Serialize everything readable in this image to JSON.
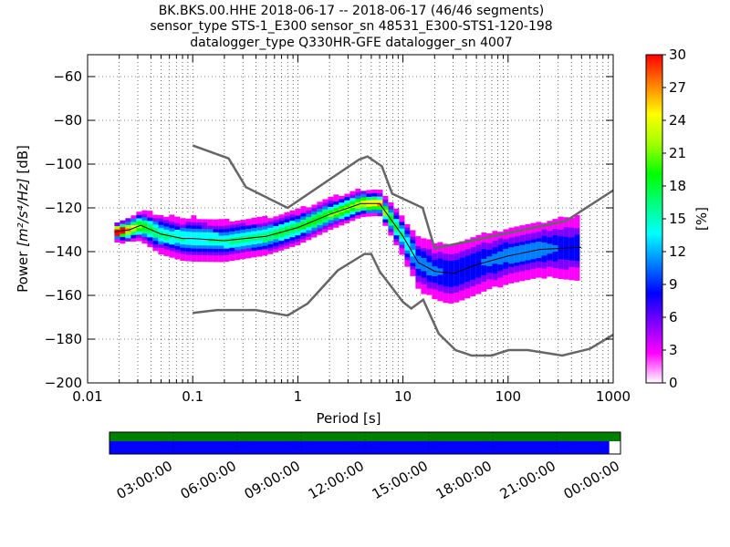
{
  "title_lines": [
    "BK.BKS.00.HHE   2018-06-17 -- 2018-06-17  (46/46 segments)",
    "sensor_type STS-1_E300 sensor_sn 48531_E300-STS1-120-198",
    "datalogger_type Q330HR-GFE datalogger_sn 4007"
  ],
  "chart_data": {
    "type": "heatmap",
    "xlabel": "Period [s]",
    "ylabel_prefix": "Power ",
    "ylabel_math": "[m²/s⁴/Hz]",
    "ylabel_suffix": " [dB]",
    "x_scale": "log",
    "xlim": [
      0.01,
      1000
    ],
    "ylim": [
      -200,
      -50
    ],
    "x_ticks": [
      {
        "value": 0.01,
        "label": "0.01"
      },
      {
        "value": 0.1,
        "label": "0.1"
      },
      {
        "value": 1,
        "label": "1"
      },
      {
        "value": 10,
        "label": "10"
      },
      {
        "value": 100,
        "label": "100"
      },
      {
        "value": 1000,
        "label": "1000"
      }
    ],
    "y_ticks": [
      -60,
      -80,
      -100,
      -120,
      -140,
      -160,
      -180,
      -200
    ],
    "grid": "dotted",
    "colorbar": {
      "label": "[%]",
      "range": [
        0,
        30
      ],
      "ticks": [
        0,
        3,
        6,
        9,
        12,
        15,
        18,
        21,
        24,
        27,
        30
      ],
      "colors": [
        "#ffffff",
        "#ff00ff",
        "#8000ff",
        "#0000ff",
        "#0080ff",
        "#00ffff",
        "#00ff80",
        "#00ff00",
        "#a0ff00",
        "#ffff00",
        "#ff8000",
        "#ff0000"
      ]
    },
    "noise_model_color": "#666666",
    "new_high_noise_model": [
      [
        0.1,
        -91.5
      ],
      [
        0.22,
        -97.4
      ],
      [
        0.32,
        -110.5
      ],
      [
        0.8,
        -120
      ],
      [
        3.8,
        -98
      ],
      [
        4.6,
        -96.5
      ],
      [
        6.3,
        -101
      ],
      [
        7.9,
        -113.5
      ],
      [
        15.4,
        -120
      ],
      [
        20,
        -138.5
      ],
      [
        354.8,
        -126
      ],
      [
        1000,
        -112
      ]
    ],
    "new_low_noise_model": [
      [
        0.1,
        -168
      ],
      [
        0.17,
        -166.7
      ],
      [
        0.4,
        -166.7
      ],
      [
        0.8,
        -169.2
      ],
      [
        1.24,
        -163.7
      ],
      [
        2.4,
        -148.6
      ],
      [
        4.3,
        -141.1
      ],
      [
        5.0,
        -141.1
      ],
      [
        6.0,
        -149
      ],
      [
        10,
        -163
      ],
      [
        12,
        -166
      ],
      [
        15.6,
        -162
      ],
      [
        21.9,
        -177.5
      ],
      [
        31.6,
        -185
      ],
      [
        45,
        -187.5
      ],
      [
        70,
        -187.5
      ],
      [
        101,
        -185
      ],
      [
        154,
        -185
      ],
      [
        328,
        -187.5
      ],
      [
        600,
        -184.4
      ],
      [
        1000,
        -178
      ]
    ],
    "ppsd_estimate": [
      [
        0.018,
        -131
      ],
      [
        0.025,
        -130
      ],
      [
        0.032,
        -128
      ],
      [
        0.05,
        -132
      ],
      [
        0.08,
        -134
      ],
      [
        0.1,
        -134
      ],
      [
        0.2,
        -135
      ],
      [
        0.5,
        -133
      ],
      [
        1,
        -129
      ],
      [
        2,
        -123
      ],
      [
        4,
        -118
      ],
      [
        6,
        -118
      ],
      [
        10,
        -133
      ],
      [
        14,
        -145
      ],
      [
        20,
        -149
      ],
      [
        30,
        -150
      ],
      [
        50,
        -146
      ],
      [
        100,
        -142
      ],
      [
        200,
        -139
      ],
      [
        500,
        -138
      ]
    ],
    "data_band": [
      [
        0.018,
        1.5
      ],
      [
        0.03,
        3
      ],
      [
        0.05,
        4
      ],
      [
        0.1,
        4.5
      ],
      [
        0.3,
        4
      ],
      [
        1,
        3.5
      ],
      [
        3,
        3
      ],
      [
        6,
        2.5
      ],
      [
        10,
        4
      ],
      [
        15,
        6
      ],
      [
        25,
        7
      ],
      [
        50,
        7
      ],
      [
        100,
        6
      ],
      [
        200,
        6
      ],
      [
        300,
        7
      ],
      [
        650,
        8
      ]
    ]
  },
  "timeline": {
    "tick_labels": [
      "03:00:00",
      "06:00:00",
      "09:00:00",
      "12:00:00",
      "15:00:00",
      "18:00:00",
      "21:00:00",
      "00:00:00"
    ],
    "top_color": "#008000",
    "bottom_color": "#0000ff",
    "coverage_fraction": 0.978
  }
}
